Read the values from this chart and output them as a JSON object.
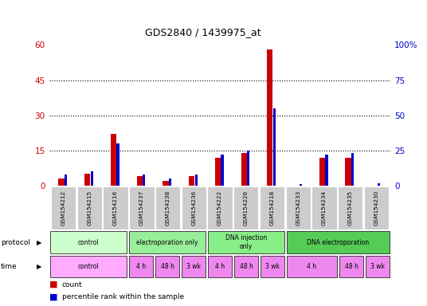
{
  "title": "GDS2840 / 1439975_at",
  "samples": [
    "GSM154212",
    "GSM154215",
    "GSM154216",
    "GSM154237",
    "GSM154238",
    "GSM154236",
    "GSM154222",
    "GSM154226",
    "GSM154218",
    "GSM154233",
    "GSM154234",
    "GSM154235",
    "GSM154230"
  ],
  "count": [
    3,
    5,
    22,
    4,
    2,
    4,
    12,
    14,
    58,
    0,
    12,
    12,
    0
  ],
  "percentile": [
    8,
    10,
    30,
    8,
    5,
    8,
    22,
    25,
    55,
    1,
    22,
    23,
    2
  ],
  "ylim_left": [
    0,
    60
  ],
  "ylim_right": [
    0,
    100
  ],
  "yticks_left": [
    0,
    15,
    30,
    45,
    60
  ],
  "yticks_right": [
    0,
    25,
    50,
    75,
    100
  ],
  "color_count": "#cc0000",
  "color_pct": "#0000cc",
  "tick_color_left": "#cc0000",
  "tick_color_right": "#0000cc",
  "bg_color": "#ffffff",
  "protocol_groups": [
    {
      "label": "control",
      "start": 0,
      "end": 3,
      "color": "#ccffcc"
    },
    {
      "label": "electroporation only",
      "start": 3,
      "end": 6,
      "color": "#99ee99"
    },
    {
      "label": "DNA injection\nonly",
      "start": 6,
      "end": 9,
      "color": "#88ee88"
    },
    {
      "label": "DNA electroporation",
      "start": 9,
      "end": 13,
      "color": "#55cc55"
    }
  ],
  "time_groups": [
    {
      "label": "control",
      "start": 0,
      "end": 3,
      "color": "#ffaaff"
    },
    {
      "label": "4 h",
      "start": 3,
      "end": 4,
      "color": "#ee88ee"
    },
    {
      "label": "48 h",
      "start": 4,
      "end": 5,
      "color": "#ee88ee"
    },
    {
      "label": "3 wk",
      "start": 5,
      "end": 6,
      "color": "#ee88ee"
    },
    {
      "label": "4 h",
      "start": 6,
      "end": 7,
      "color": "#ee88ee"
    },
    {
      "label": "48 h",
      "start": 7,
      "end": 8,
      "color": "#ee88ee"
    },
    {
      "label": "3 wk",
      "start": 8,
      "end": 9,
      "color": "#ee88ee"
    },
    {
      "label": "4 h",
      "start": 9,
      "end": 11,
      "color": "#ee88ee"
    },
    {
      "label": "48 h",
      "start": 11,
      "end": 12,
      "color": "#ee88ee"
    },
    {
      "label": "3 wk",
      "start": 12,
      "end": 13,
      "color": "#ee88ee"
    }
  ]
}
